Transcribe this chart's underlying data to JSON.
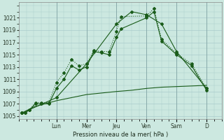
{
  "xlabel": "Pression niveau de la mer( hPa )",
  "background_color": "#cce8e0",
  "grid_color": "#aacccc",
  "line_color": "#1a5c1a",
  "ylim": [
    1004.5,
    1023.5
  ],
  "yticks": [
    1005,
    1007,
    1009,
    1011,
    1013,
    1015,
    1017,
    1019,
    1021
  ],
  "day_labels": [
    "Lun",
    "Mer",
    "Jeu",
    "Ven",
    "Sam",
    "D"
  ],
  "day_positions": [
    3.0,
    5.0,
    7.0,
    9.0,
    11.0,
    13.0
  ],
  "xlim": [
    0.5,
    14.0
  ],
  "series1_x": [
    0.7,
    0.9,
    1.2,
    1.6,
    2.0,
    2.5,
    3.0,
    3.5,
    4.0,
    4.5,
    5.0,
    5.5,
    6.0,
    6.5,
    7.0,
    7.3,
    9.0,
    9.5,
    10.0,
    11.0,
    12.0,
    13.0
  ],
  "series1_y": [
    1005.5,
    1005.5,
    1006.0,
    1007.2,
    1007.2,
    1007.2,
    1010.5,
    1012.0,
    1014.2,
    1013.2,
    1013.5,
    1015.7,
    1015.5,
    1015.5,
    1018.8,
    1021.2,
    1021.3,
    1022.5,
    1017.5,
    1015.2,
    1013.5,
    1009.5
  ],
  "series2_x": [
    0.7,
    0.9,
    1.2,
    1.6,
    2.0,
    2.5,
    3.0,
    3.5,
    4.0,
    4.5,
    5.0,
    5.5,
    6.0,
    6.5,
    7.0,
    7.3,
    9.0,
    9.5,
    10.0,
    11.0,
    12.0,
    13.0
  ],
  "series2_y": [
    1005.5,
    1005.5,
    1006.0,
    1007.0,
    1007.0,
    1007.0,
    1009.5,
    1011.0,
    1013.2,
    1012.5,
    1013.0,
    1015.5,
    1015.3,
    1015.0,
    1017.8,
    1019.2,
    1021.0,
    1022.0,
    1017.2,
    1015.0,
    1013.2,
    1009.2
  ],
  "series3_x": [
    0.7,
    1.5,
    3.0,
    5.0,
    7.0,
    8.0,
    9.0,
    10.0,
    11.0,
    12.0,
    13.0
  ],
  "series3_y": [
    1005.5,
    1006.5,
    1007.5,
    1008.5,
    1009.0,
    1009.2,
    1009.5,
    1009.7,
    1009.8,
    1009.9,
    1010.0
  ],
  "series4_x": [
    0.7,
    3.0,
    5.0,
    7.0,
    8.0,
    9.0,
    10.0,
    11.0,
    13.0
  ],
  "series4_y": [
    1005.5,
    1008.0,
    1013.5,
    1020.0,
    1022.0,
    1021.5,
    1020.0,
    1015.5,
    1009.5
  ]
}
